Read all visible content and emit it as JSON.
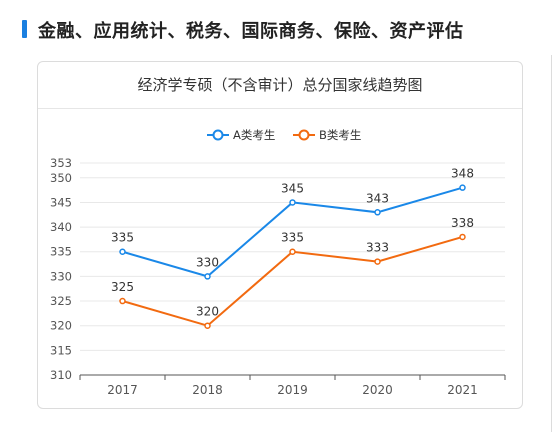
{
  "header": {
    "title": "金融、应用统计、税务、国际商务、保险、资产评估",
    "accent_color": "#1a7fe0"
  },
  "card": {
    "title": "经济学专硕（不含审计）总分国家线趋势图"
  },
  "chart_data": {
    "type": "line",
    "title": "经济学专硕（不含审计）总分国家线趋势图",
    "categories": [
      "2017",
      "2018",
      "2019",
      "2020",
      "2021"
    ],
    "series": [
      {
        "name": "A类考生",
        "values": [
          335,
          330,
          345,
          343,
          348
        ],
        "color": "#1a88e8"
      },
      {
        "name": "B类考生",
        "values": [
          325,
          320,
          335,
          333,
          338
        ],
        "color": "#f26a10"
      }
    ],
    "yticks": [
      310,
      315,
      320,
      325,
      330,
      335,
      340,
      345,
      350,
      353
    ],
    "ylim": [
      310,
      353
    ],
    "xlabel": "",
    "ylabel": "",
    "grid": true,
    "legend": "top-center",
    "data_labels": true
  }
}
